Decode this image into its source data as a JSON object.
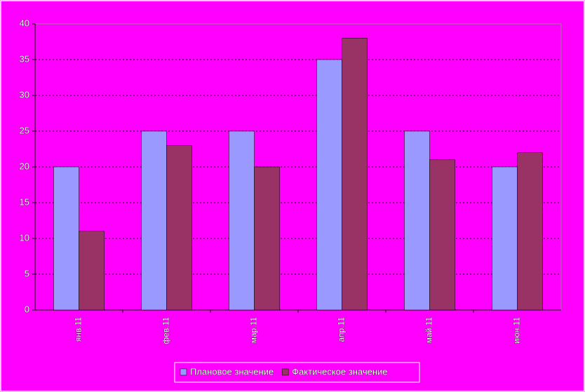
{
  "chart_data": {
    "type": "bar",
    "categories": [
      "янв.11",
      "фев.11",
      "мар.11",
      "апр.11",
      "май.11",
      "июн.11"
    ],
    "series": [
      {
        "name": "Плановое значение",
        "color": "#9999ff",
        "values": [
          20,
          25,
          25,
          35,
          25,
          20
        ]
      },
      {
        "name": "Фактическое значение",
        "color": "#993366",
        "values": [
          11,
          23,
          20,
          38,
          21,
          22
        ]
      }
    ],
    "ylim": [
      0,
      40
    ],
    "yticks": [
      0,
      5,
      10,
      15,
      20,
      25,
      30,
      35,
      40
    ],
    "grid": true,
    "legend": "bottom"
  }
}
